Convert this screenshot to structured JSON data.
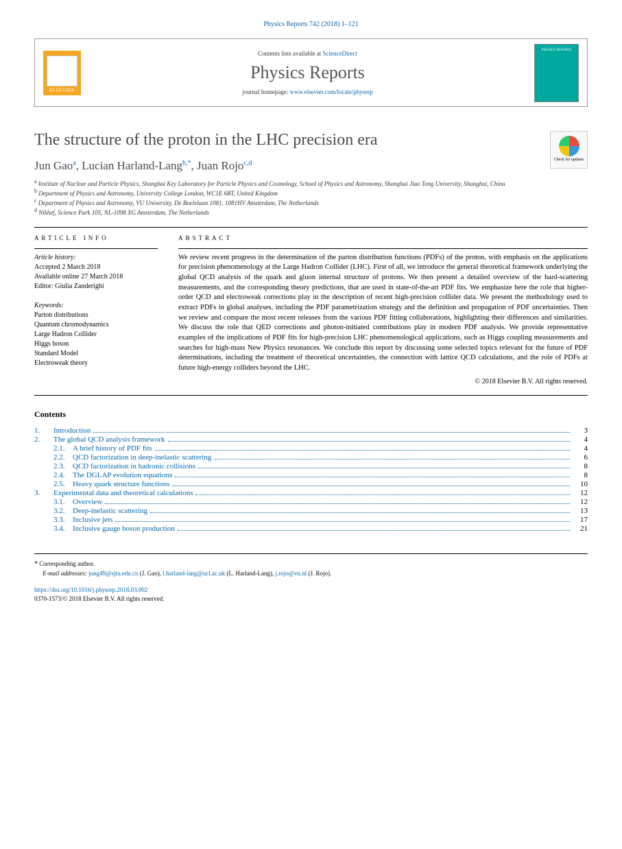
{
  "header": {
    "citation": "Physics Reports 742 (2018) 1–121",
    "contents_prefix": "Contents lists available at ",
    "contents_link": "ScienceDirect",
    "journal_name": "Physics Reports",
    "homepage_prefix": "journal homepage: ",
    "homepage_url": "www.elsevier.com/locate/physrep",
    "publisher_name": "ELSEVIER",
    "cover_label": "PHYSICS REPORTS"
  },
  "paper": {
    "title": "The structure of the proton in the LHC precision era",
    "check_updates": "Check for updates"
  },
  "authors_line": {
    "a1_name": "Jun Gao",
    "a1_sup": "a",
    "a2_name": "Lucian Harland-Lang",
    "a2_sup": "b,*",
    "a3_name": "Juan Rojo",
    "a3_sup": "c,d"
  },
  "affiliations": {
    "a": "Institute of Nuclear and Particle Physics, Shanghai Key Laboratory for Particle Physics and Cosmology, School of Physics and Astronomy, Shanghai Jiao Tong University, Shanghai, China",
    "b": "Department of Physics and Astronomy, University College London, WC1E 6BT, United Kingdom",
    "c": "Department of Physics and Astronomy, VU University, De Boelelaan 1081, 1081HV Amsterdam, The Netherlands",
    "d": "Nikhef, Science Park 105, NL-1098 XG Amsterdam, The Netherlands"
  },
  "article_info": {
    "heading": "article info",
    "history_label": "Article history:",
    "accepted": "Accepted 2 March 2018",
    "online": "Available online 27 March 2018",
    "editor": "Editor: Giulia Zanderighi",
    "keywords_label": "Keywords:",
    "keywords": [
      "Parton distributions",
      "Quantum chromodynamics",
      "Large Hadron Collider",
      "Higgs boson",
      "Standard Model",
      "Electroweak theory"
    ]
  },
  "abstract": {
    "heading": "abstract",
    "text": "We review recent progress in the determination of the parton distribution functions (PDFs) of the proton, with emphasis on the applications for precision phenomenology at the Large Hadron Collider (LHC). First of all, we introduce the general theoretical framework underlying the global QCD analysis of the quark and gluon internal structure of protons. We then present a detailed overview of the hard-scattering measurements, and the corresponding theory predictions, that are used in state-of-the-art PDF fits. We emphasize here the role that higher-order QCD and electroweak corrections play in the description of recent high-precision collider data. We present the methodology used to extract PDFs in global analyses, including the PDF parametrization strategy and the definition and propagation of PDF uncertainties. Then we review and compare the most recent releases from the various PDF fitting collaborations, highlighting their differences and similarities. We discuss the role that QED corrections and photon-initiated contributions play in modern PDF analysis. We provide representative examples of the implications of PDF fits for high-precision LHC phenomenological applications, such as Higgs coupling measurements and searches for high-mass New Physics resonances. We conclude this report by discussing some selected topics relevant for the future of PDF determinations, including the treatment of theoretical uncertainties, the connection with lattice QCD calculations, and the role of PDFs at future high-energy colliders beyond the LHC.",
    "copyright": "© 2018 Elsevier B.V. All rights reserved."
  },
  "contents": {
    "heading": "Contents",
    "items": [
      {
        "num": "1.",
        "title": "Introduction",
        "page": "3",
        "sub": false
      },
      {
        "num": "2.",
        "title": "The global QCD analysis framework",
        "page": "4",
        "sub": false
      },
      {
        "num": "2.1.",
        "title": "A brief history of PDF fits",
        "page": "4",
        "sub": true
      },
      {
        "num": "2.2.",
        "title": "QCD factorization in deep-inelastic scattering",
        "page": "6",
        "sub": true
      },
      {
        "num": "2.3.",
        "title": "QCD factorization in hadronic collisions",
        "page": "8",
        "sub": true
      },
      {
        "num": "2.4.",
        "title": "The DGLAP evolution equations",
        "page": "8",
        "sub": true
      },
      {
        "num": "2.5.",
        "title": "Heavy quark structure functions",
        "page": "10",
        "sub": true
      },
      {
        "num": "3.",
        "title": "Experimental data and theoretical calculations",
        "page": "12",
        "sub": false
      },
      {
        "num": "3.1.",
        "title": "Overview",
        "page": "12",
        "sub": true
      },
      {
        "num": "3.2.",
        "title": "Deep-inelastic scattering",
        "page": "13",
        "sub": true
      },
      {
        "num": "3.3.",
        "title": "Inclusive jets",
        "page": "17",
        "sub": true
      },
      {
        "num": "3.4.",
        "title": "Inclusive gauge boson production",
        "page": "21",
        "sub": true
      }
    ]
  },
  "footer": {
    "corr_label": "Corresponding author.",
    "email_label": "E-mail addresses:",
    "emails": [
      {
        "addr": "jung49@sjtu.edu.cn",
        "name": "(J. Gao)"
      },
      {
        "addr": "l.harland-lang@ucl.ac.uk",
        "name": "(L. Harland-Lang)"
      },
      {
        "addr": "j.rojo@vu.nl",
        "name": "(J. Rojo)"
      }
    ],
    "doi": "https://doi.org/10.1016/j.physrep.2018.03.002",
    "issn_line": "0370-1573/© 2018 Elsevier B.V. All rights reserved."
  },
  "colors": {
    "link": "#0066aa",
    "elsevier_orange": "#f5a623",
    "cover_teal": "#00a99d",
    "text_gray": "#4a4a4a"
  }
}
